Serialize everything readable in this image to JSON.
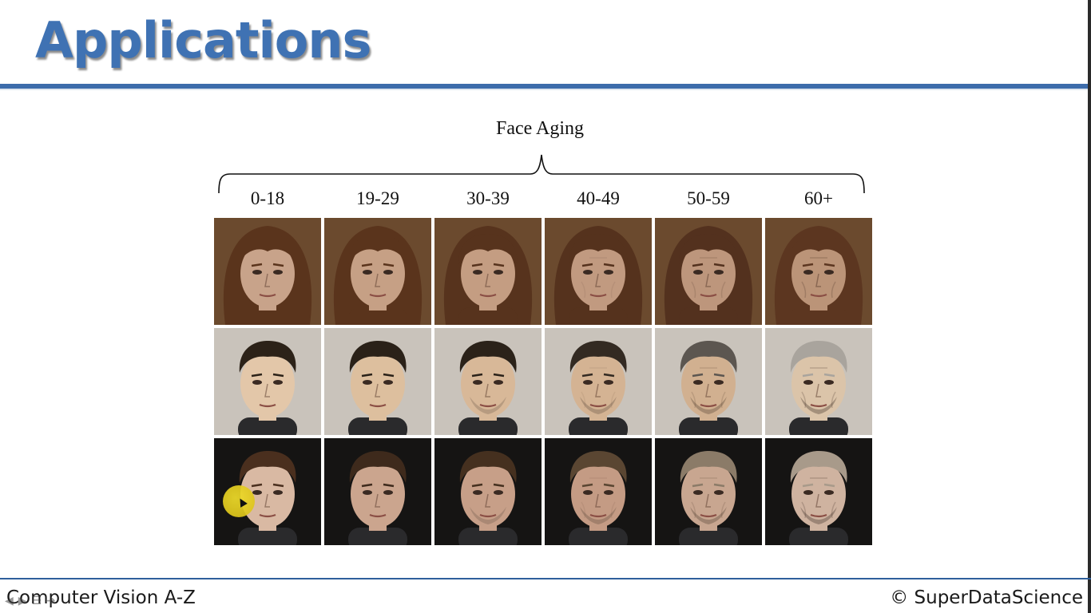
{
  "slide": {
    "title": "Applications"
  },
  "figure": {
    "caption": "Face Aging",
    "age_groups": [
      "0-18",
      "19-29",
      "30-39",
      "40-49",
      "50-59",
      "60+"
    ],
    "rows": [
      {
        "subject": "woman-brown-hair",
        "hair_colors": [
          "#5a341c",
          "#5a341c",
          "#57331d",
          "#55321d",
          "#53311e",
          "#5c3620"
        ],
        "skin_colors": [
          "#c8a38a",
          "#c6a085",
          "#c49d82",
          "#c19a80",
          "#bd967c",
          "#bb9478"
        ],
        "bg_color": "#6b4a2e"
      },
      {
        "subject": "man-dark-hair",
        "hair_colors": [
          "#2c2218",
          "#2a2118",
          "#2b2219",
          "#332a22",
          "#5c5650",
          "#a9a49d"
        ],
        "skin_colors": [
          "#e3c7a9",
          "#ddbf9e",
          "#d8b898",
          "#d4b393",
          "#d1b090",
          "#dbc4a9"
        ],
        "bg_color": "#c9c3bb"
      },
      {
        "subject": "man-brown-hair",
        "hair_colors": [
          "#4a2f1e",
          "#3e2a1c",
          "#45301f",
          "#5a4632",
          "#8b7b68",
          "#a89a8a"
        ],
        "skin_colors": [
          "#d9b9a3",
          "#cba58e",
          "#c79f88",
          "#c49b84",
          "#c8a690",
          "#cfb3a0"
        ],
        "bg_color": "#151413"
      }
    ]
  },
  "footer": {
    "course": "Computer Vision A-Z",
    "copyright": "© SuperDataScience"
  },
  "player": {
    "controls": [
      "prev-icon",
      "next-icon",
      "menu-icon",
      "forward-icon"
    ]
  }
}
